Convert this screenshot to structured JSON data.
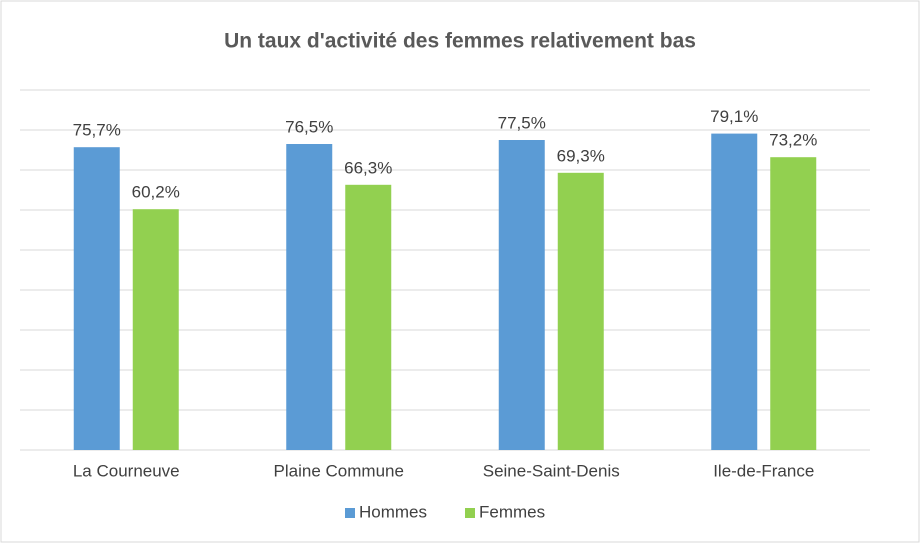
{
  "chart_data": {
    "type": "bar",
    "title": "Un  taux d'activité des femmes relativement bas",
    "categories": [
      "La Courneuve",
      "Plaine Commune",
      "Seine-Saint-Denis",
      "Ile-de-France"
    ],
    "series": [
      {
        "name": "Hommes",
        "color": "#5b9bd5",
        "values": [
          75.7,
          76.5,
          77.5,
          79.1
        ],
        "value_labels": [
          "75,7%",
          "76,5%",
          "77,5%",
          "79,1%"
        ]
      },
      {
        "name": "Femmes",
        "color": "#92d050",
        "values": [
          60.2,
          66.3,
          69.3,
          73.2
        ],
        "value_labels": [
          "60,2%",
          "66,3%",
          "69,3%",
          "73,2%"
        ]
      }
    ],
    "ylim": [
      0,
      90
    ],
    "yticks": [
      0,
      10,
      20,
      30,
      40,
      50,
      60,
      70,
      80,
      90
    ],
    "grid": true,
    "legend": "bottom"
  }
}
